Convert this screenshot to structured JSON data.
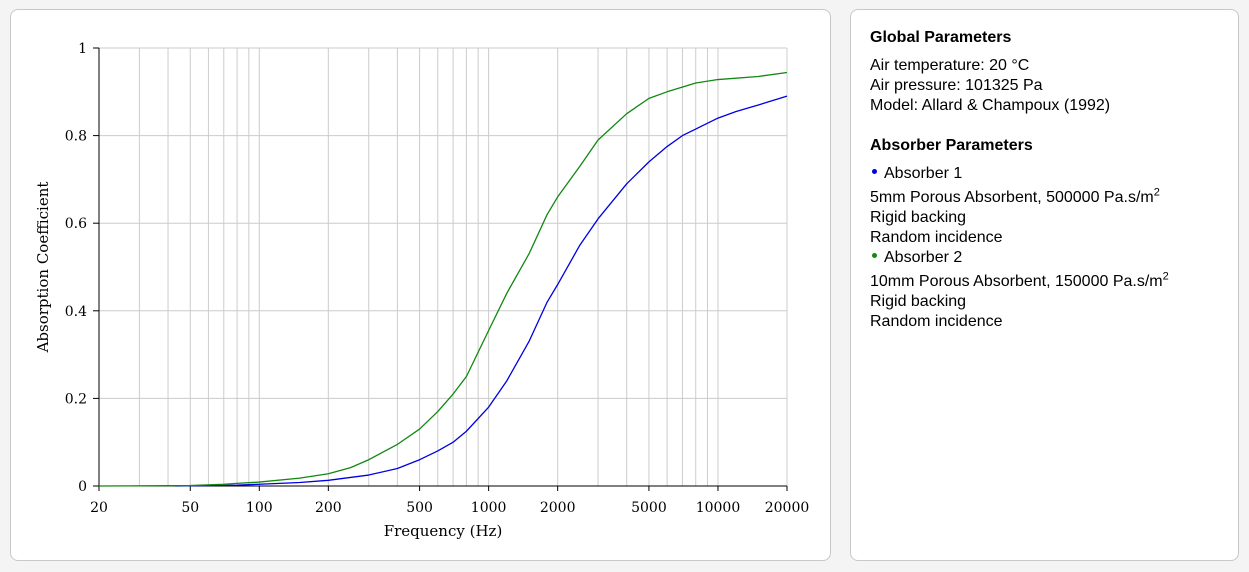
{
  "params": {
    "global_title": "Global Parameters",
    "air_temperature": "Air temperature: 20 °C",
    "air_pressure": "Air pressure: 101325 Pa",
    "model": "Model: Allard & Champoux (1992)",
    "absorber_title": "Absorber Parameters",
    "absorbers": [
      {
        "name": "Absorber 1",
        "color": "#0000e0",
        "desc_main": "5mm Porous Absorbent, 500000 Pa.s/m",
        "desc_sup": "2",
        "backing": "Rigid backing",
        "incidence": "Random incidence"
      },
      {
        "name": "Absorber 2",
        "color": "#118811",
        "desc_main": "10mm Porous Absorbent, 150000 Pa.s/m",
        "desc_sup": "2",
        "backing": "Rigid backing",
        "incidence": "Random incidence"
      }
    ]
  },
  "chart_data": {
    "type": "line",
    "xlabel": "Frequency (Hz)",
    "ylabel": "Absorption Coefficient",
    "x_scale": "log",
    "xlim": [
      20,
      20000
    ],
    "ylim": [
      0,
      1
    ],
    "x_ticks": [
      20,
      50,
      100,
      200,
      500,
      1000,
      2000,
      5000,
      10000,
      20000
    ],
    "x_tick_labels": [
      "20",
      "50",
      "100",
      "200",
      "500",
      "1000",
      "2000",
      "5000",
      "10000",
      "20000"
    ],
    "y_ticks": [
      0,
      0.2,
      0.4,
      0.6,
      0.8,
      1
    ],
    "y_tick_labels": [
      "0",
      "0.2",
      "0.4",
      "0.6",
      "0.8",
      "1"
    ],
    "grid": true,
    "series": [
      {
        "name": "Absorber 1",
        "color": "#0000e0",
        "x": [
          43,
          60,
          80,
          100,
          150,
          200,
          300,
          400,
          500,
          600,
          700,
          800,
          1000,
          1200,
          1500,
          1800,
          2000,
          2500,
          3000,
          4000,
          5000,
          6000,
          7000,
          8000,
          10000,
          12000,
          15000,
          20000
        ],
        "y": [
          0.0,
          0.001,
          0.002,
          0.004,
          0.008,
          0.013,
          0.025,
          0.04,
          0.06,
          0.08,
          0.1,
          0.125,
          0.18,
          0.24,
          0.33,
          0.42,
          0.46,
          0.55,
          0.61,
          0.69,
          0.74,
          0.775,
          0.8,
          0.815,
          0.84,
          0.855,
          0.87,
          0.89
        ]
      },
      {
        "name": "Absorber 2",
        "color": "#118811",
        "x": [
          20,
          50,
          70,
          80,
          100,
          150,
          200,
          250,
          300,
          400,
          500,
          600,
          700,
          800,
          1000,
          1200,
          1500,
          1800,
          2000,
          2500,
          3000,
          4000,
          5000,
          6000,
          8000,
          10000,
          15000,
          20000
        ],
        "y": [
          0.0,
          0.001,
          0.004,
          0.006,
          0.009,
          0.018,
          0.028,
          0.042,
          0.06,
          0.095,
          0.13,
          0.17,
          0.21,
          0.25,
          0.355,
          0.44,
          0.53,
          0.62,
          0.66,
          0.73,
          0.79,
          0.85,
          0.885,
          0.9,
          0.92,
          0.928,
          0.935,
          0.944
        ]
      }
    ]
  }
}
